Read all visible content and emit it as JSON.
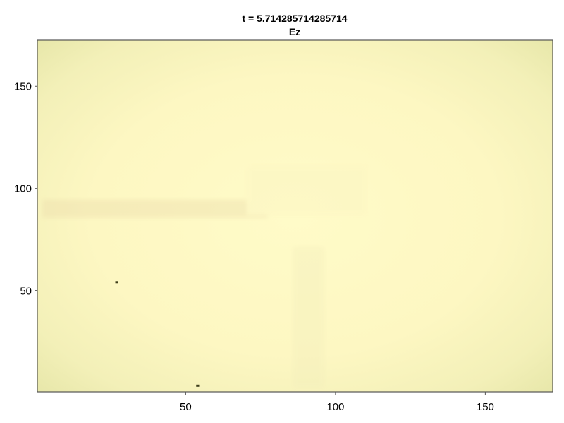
{
  "chart_data": {
    "type": "heatmap",
    "title": "t = 5.714285714285714",
    "subtitle": "Ez",
    "xlabel": "",
    "ylabel": "",
    "xlim": [
      0.5,
      172.5
    ],
    "ylim": [
      0.5,
      172.5
    ],
    "x_ticks": [
      50,
      100,
      150
    ],
    "y_ticks": [
      50,
      100,
      150
    ],
    "grid": false,
    "colors": {
      "field_center": "#fffbc8",
      "field_edge": "#eaeaad",
      "frame": "#555555",
      "marker": "#3d3d1a"
    },
    "markers": [
      {
        "x": 27,
        "y": 54
      },
      {
        "x": 54,
        "y": 3.5
      }
    ]
  }
}
